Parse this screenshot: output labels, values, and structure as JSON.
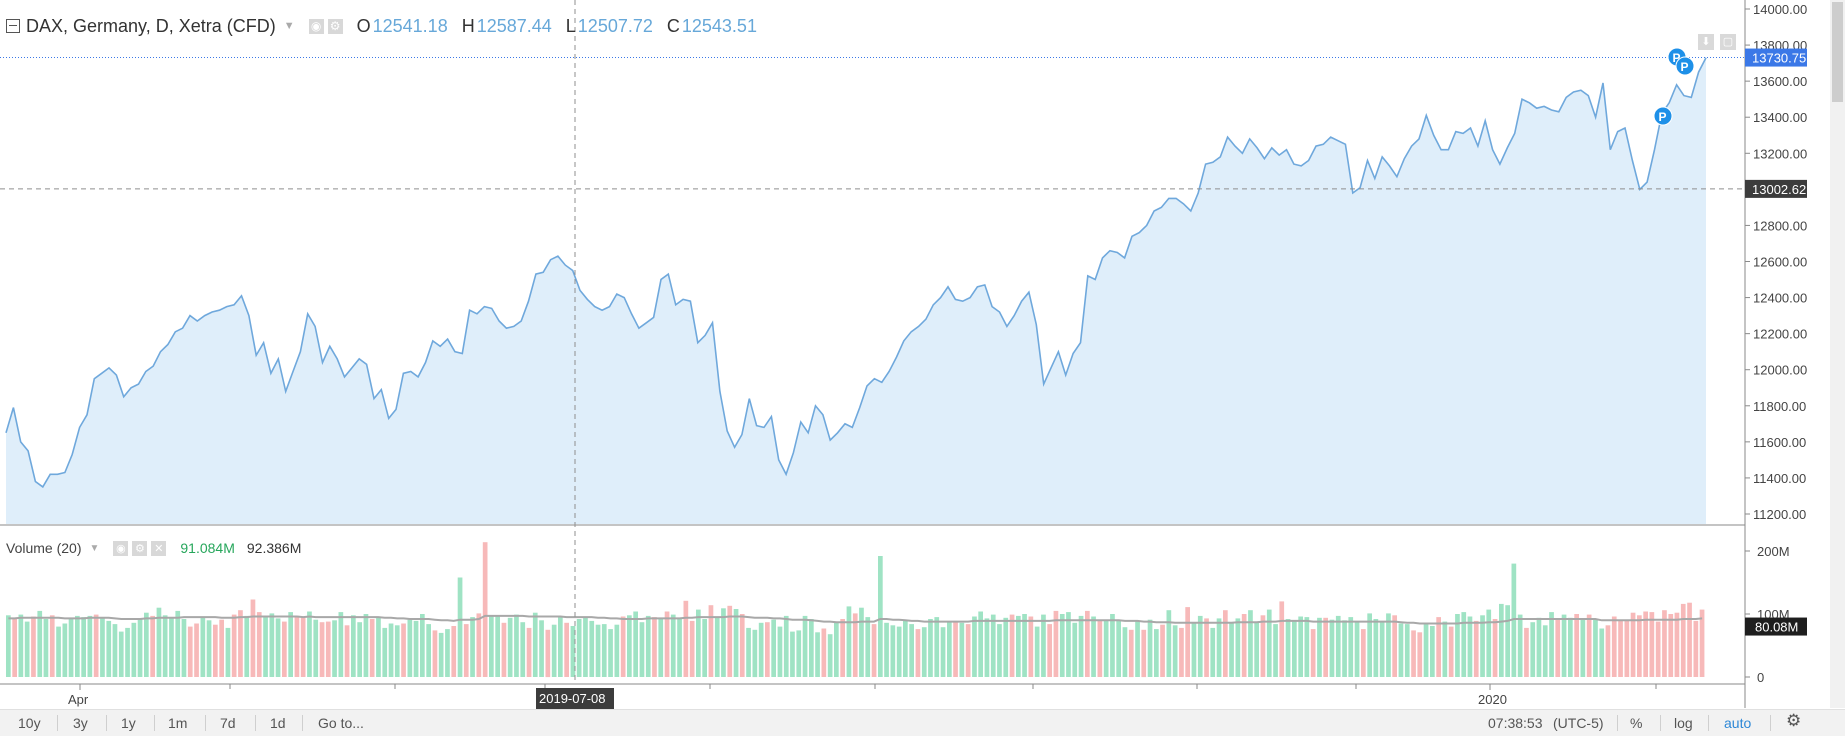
{
  "legend": {
    "title": "DAX, Germany, D, Xetra (CFD)",
    "open_label": "O",
    "open": "12541.18",
    "high_label": "H",
    "high": "12587.44",
    "low_label": "L",
    "low": "12507.72",
    "close_label": "C",
    "close": "12543.51"
  },
  "volume_legend": {
    "label": "Volume (20)",
    "value": "91.084M",
    "ma_value": "92.386M"
  },
  "price_axis": {
    "ticks": [
      "14000.00",
      "13800.00",
      "13600.00",
      "13400.00",
      "13200.00",
      "13000.00",
      "12800.00",
      "12600.00",
      "12400.00",
      "12200.00",
      "12000.00",
      "11800.00",
      "11600.00",
      "11400.00",
      "11200.00"
    ],
    "last_price_badge": "13730.75",
    "crosshair_price_badge": "13002.62"
  },
  "volume_axis": {
    "ticks": [
      "200M",
      "100M",
      "0"
    ],
    "badge": "80.08M"
  },
  "time_axis": {
    "labels": [
      "Apr",
      "2020"
    ],
    "crosshair_date": "2019-07-08"
  },
  "markers": [
    "P",
    "P",
    "P"
  ],
  "bottom_bar": {
    "ranges": [
      "10y",
      "3y",
      "1y",
      "1m",
      "7d",
      "1d"
    ],
    "goto": "Go to...",
    "clock": "07:38:53",
    "timezone": "(UTC-5)",
    "percent": "%",
    "log": "log",
    "auto": "auto"
  },
  "colors": {
    "line": "#6fa8dc",
    "area": "#dfeefa",
    "vol_up": "#9fe3c4",
    "vol_down": "#f7b9b9",
    "vol_ma": "#a8a8a8",
    "last_badge": "#3b78e7",
    "marker": "#1e90e8"
  },
  "chart_data": [
    {
      "type": "area",
      "title": "",
      "x_range": [
        "2019-03-01",
        "2020-01-17"
      ],
      "ylim": [
        11100,
        14020
      ],
      "y": [
        11650,
        11790,
        11600,
        11550,
        11380,
        11350,
        11420,
        11420,
        11430,
        11530,
        11680,
        11750,
        11950,
        11980,
        12010,
        11970,
        11850,
        11900,
        11920,
        11990,
        12020,
        12100,
        12140,
        12210,
        12230,
        12300,
        12270,
        12300,
        12320,
        12330,
        12350,
        12360,
        12410,
        12300,
        12080,
        12150,
        11980,
        12060,
        11880,
        11990,
        12100,
        12310,
        12240,
        12040,
        12130,
        12060,
        11960,
        12010,
        12060,
        12030,
        11840,
        11890,
        11730,
        11780,
        11980,
        11990,
        11960,
        12040,
        12160,
        12130,
        12170,
        12100,
        12090,
        12330,
        12310,
        12350,
        12340,
        12270,
        12230,
        12240,
        12270,
        12380,
        12530,
        12540,
        12610,
        12630,
        12580,
        12550,
        12440,
        12390,
        12350,
        12330,
        12350,
        12420,
        12400,
        12310,
        12230,
        12260,
        12290,
        12500,
        12530,
        12360,
        12390,
        12380,
        12150,
        12190,
        12260,
        11880,
        11660,
        11570,
        11640,
        11840,
        11690,
        11680,
        11740,
        11500,
        11420,
        11540,
        11710,
        11650,
        11800,
        11750,
        11610,
        11650,
        11700,
        11680,
        11790,
        11910,
        11950,
        11930,
        11990,
        12070,
        12160,
        12210,
        12240,
        12280,
        12360,
        12400,
        12460,
        12390,
        12380,
        12400,
        12460,
        12470,
        12350,
        12320,
        12240,
        12300,
        12380,
        12430,
        12250,
        11920,
        12010,
        12100,
        11970,
        12090,
        12150,
        12520,
        12500,
        12620,
        12660,
        12650,
        12620,
        12740,
        12760,
        12800,
        12880,
        12900,
        12950,
        12950,
        12920,
        12880,
        12980,
        13140,
        13150,
        13180,
        13290,
        13240,
        13200,
        13280,
        13230,
        13170,
        13230,
        13190,
        13220,
        13140,
        13130,
        13160,
        13240,
        13250,
        13290,
        13270,
        13250,
        12980,
        13010,
        13160,
        13060,
        13180,
        13130,
        13070,
        13170,
        13240,
        13280,
        13410,
        13300,
        13220,
        13220,
        13320,
        13310,
        13340,
        13240,
        13380,
        13220,
        13140,
        13230,
        13310,
        13500,
        13480,
        13450,
        13460,
        13440,
        13430,
        13510,
        13540,
        13550,
        13520,
        13400,
        13590,
        13220,
        13320,
        13340,
        13160,
        13000,
        13040,
        13220,
        13420,
        13480,
        13580,
        13520,
        13510,
        13650,
        13730
      ]
    },
    {
      "type": "bar",
      "title": "",
      "ylabel": "",
      "ylim": [
        0,
        215
      ],
      "values": [
        98,
        93,
        99,
        88,
        96,
        105,
        92,
        98,
        80,
        85,
        92,
        97,
        95,
        97,
        99,
        94,
        89,
        84,
        72,
        78,
        86,
        93,
        102,
        97,
        110,
        98,
        94,
        105,
        92,
        80,
        85,
        96,
        90,
        83,
        91,
        78,
        99,
        106,
        97,
        123,
        103,
        95,
        101,
        93,
        88,
        103,
        97,
        94,
        104,
        91,
        87,
        88,
        90,
        103,
        82,
        98,
        87,
        100,
        92,
        95,
        78,
        85,
        82,
        85,
        91,
        89,
        100,
        84,
        74,
        70,
        76,
        81,
        158,
        84,
        95,
        101,
        214,
        97,
        98,
        86,
        94,
        99,
        87,
        78,
        102,
        90,
        75,
        83,
        95,
        86,
        81,
        92,
        96,
        89,
        83,
        84,
        76,
        83,
        96,
        98,
        104,
        87,
        97,
        95,
        92,
        104,
        99,
        94,
        121,
        89,
        107,
        92,
        114,
        96,
        109,
        113,
        108,
        100,
        78,
        75,
        86,
        87,
        91,
        80,
        97,
        72,
        74,
        97,
        92,
        71,
        77,
        68,
        86,
        92,
        112,
        101,
        110,
        95,
        84,
        192,
        86,
        82,
        80,
        91,
        84,
        76,
        79,
        92,
        95,
        79,
        88,
        89,
        86,
        84,
        96,
        104,
        93,
        99,
        84,
        94,
        99,
        97,
        100,
        96,
        80,
        99,
        84,
        105,
        100,
        103,
        86,
        97,
        105,
        96,
        90,
        91,
        100,
        89,
        79,
        75,
        89,
        75,
        91,
        76,
        83,
        106,
        82,
        78,
        111,
        86,
        97,
        93,
        78,
        93,
        106,
        85,
        93,
        100,
        106,
        88,
        98,
        107,
        84,
        120,
        92,
        89,
        96,
        95,
        76,
        94,
        94,
        91,
        97,
        90,
        95,
        88,
        76,
        101,
        92,
        88,
        101,
        98,
        85,
        84,
        74,
        71,
        84,
        81,
        95,
        88,
        80,
        100,
        103,
        96,
        89,
        98,
        107,
        92,
        116,
        114,
        180,
        99,
        78,
        87,
        94,
        82,
        103,
        92,
        99,
        94,
        100,
        93,
        99,
        91,
        77,
        82,
        96,
        89,
        91,
        102,
        98,
        104,
        103,
        88,
        106,
        100,
        102,
        116,
        118,
        89,
        107
      ],
      "up": [
        1,
        0,
        1,
        1,
        0,
        1,
        1,
        0,
        1,
        1,
        1,
        1,
        1,
        1,
        0,
        1,
        1,
        1,
        1,
        1,
        1,
        1,
        1,
        0,
        1,
        1,
        1,
        1,
        1,
        0,
        0,
        1,
        1,
        0,
        0,
        1,
        0,
        0,
        1,
        0,
        0,
        1,
        1,
        1,
        0,
        1,
        0,
        0,
        1,
        1,
        0,
        0,
        1,
        1,
        0,
        1,
        1,
        1,
        0,
        1,
        1,
        1,
        1,
        0,
        1,
        1,
        1,
        1,
        0,
        1,
        1,
        0,
        1,
        0,
        1,
        0,
        0,
        1,
        1,
        0,
        1,
        1,
        1,
        0,
        1,
        1,
        0,
        1,
        1,
        0,
        1,
        1,
        1,
        1,
        1,
        1,
        1,
        1,
        0,
        1,
        1,
        1,
        1,
        0,
        1,
        0,
        1,
        1,
        0,
        0,
        1,
        1,
        0,
        1,
        1,
        0,
        1,
        0,
        1,
        1,
        1,
        0,
        1,
        1,
        1,
        1,
        1,
        1,
        1,
        1,
        0,
        1,
        1,
        0,
        1,
        0,
        1,
        1,
        0,
        1,
        1,
        1,
        1,
        1,
        1,
        0,
        1,
        1,
        1,
        1,
        1,
        0,
        1,
        0,
        1,
        1,
        1,
        1,
        1,
        1,
        0,
        1,
        1,
        0,
        1,
        1,
        0,
        0,
        1,
        1,
        1,
        1,
        0,
        1,
        0,
        1,
        1,
        1,
        1,
        0,
        1,
        0,
        1,
        1,
        0,
        1,
        1,
        0,
        0,
        1,
        1,
        0,
        1,
        1,
        0,
        1,
        1,
        0,
        1,
        1,
        0,
        1,
        1,
        0,
        1,
        1,
        1,
        1,
        0,
        1,
        0,
        1,
        1,
        1,
        1,
        1,
        0,
        1,
        1,
        1,
        1,
        0,
        1,
        1,
        0,
        0,
        1,
        1,
        0,
        1,
        0,
        1,
        1,
        1,
        0,
        1,
        1,
        0,
        1,
        1,
        1,
        1,
        0,
        1,
        1,
        1,
        1,
        0,
        1,
        1,
        0,
        1,
        0,
        1,
        1
      ],
      "ma": [
        93,
        93,
        94,
        94,
        94,
        94,
        94,
        94,
        94,
        93,
        93,
        93,
        93,
        94,
        94,
        94,
        94,
        93,
        92,
        92,
        92,
        92,
        93,
        93,
        94,
        94,
        94,
        94,
        95,
        95,
        95,
        95,
        95,
        95,
        94,
        94,
        94,
        95,
        95,
        96,
        96,
        96,
        96,
        96,
        96,
        96,
        96,
        95,
        96,
        95,
        95,
        95,
        95,
        95,
        95,
        95,
        95,
        95,
        95,
        95,
        94,
        94,
        93,
        93,
        92,
        92,
        92,
        92,
        91,
        90,
        90,
        89,
        91,
        91,
        91,
        92,
        97,
        97,
        97,
        97,
        97,
        97,
        97,
        96,
        96,
        96,
        96,
        96,
        96,
        95,
        95,
        95,
        95,
        95,
        94,
        94,
        93,
        93,
        92,
        92,
        92,
        92,
        93,
        93,
        93,
        93,
        93,
        93,
        94,
        94,
        95,
        95,
        95,
        95,
        95,
        96,
        96,
        96,
        95,
        94,
        94,
        94,
        93,
        93,
        92,
        91,
        91,
        91,
        90,
        89,
        88,
        88,
        87,
        87,
        87,
        87,
        88,
        88,
        88,
        92,
        92,
        91,
        91,
        90,
        89,
        89,
        88,
        88,
        88,
        88,
        88,
        88,
        88,
        88,
        89,
        89,
        89,
        89,
        89,
        89,
        89,
        89,
        89,
        89,
        89,
        89,
        89,
        90,
        90,
        90,
        90,
        90,
        90,
        90,
        90,
        90,
        90,
        90,
        89,
        89,
        89,
        88,
        88,
        87,
        87,
        87,
        86,
        86,
        86,
        86,
        86,
        86,
        86,
        86,
        86,
        86,
        87,
        87,
        87,
        87,
        88,
        88,
        88,
        89,
        89,
        89,
        89,
        89,
        88,
        88,
        88,
        88,
        88,
        88,
        88,
        88,
        88,
        88,
        88,
        88,
        88,
        88,
        87,
        86,
        86,
        85,
        85,
        85,
        85,
        85,
        85,
        85,
        86,
        86,
        86,
        86,
        87,
        87,
        88,
        89,
        92,
        92,
        92,
        92,
        92,
        92,
        92,
        92,
        92,
        92,
        92,
        92,
        92,
        92,
        90,
        90,
        90,
        90,
        90,
        90,
        90,
        91,
        91,
        91,
        91,
        91,
        91,
        92,
        92,
        92,
        93
      ]
    }
  ]
}
